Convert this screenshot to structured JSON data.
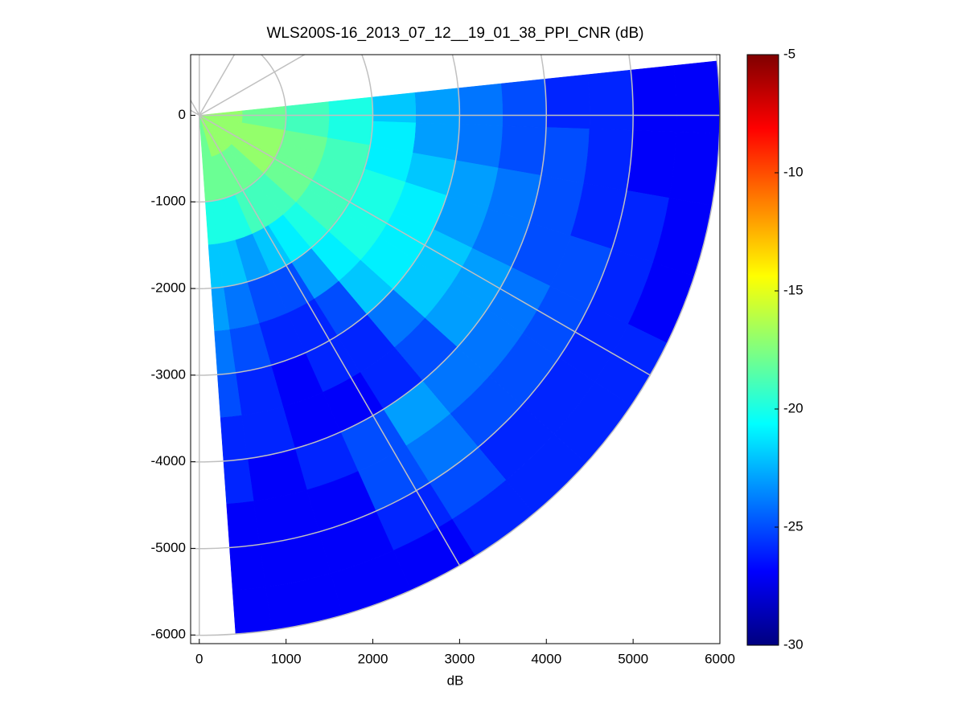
{
  "chart_data": {
    "type": "polar_heatmap",
    "title": "WLS200S-16_2013_07_12__19_01_38_PPI_CNR (dB)",
    "x_label": "dB",
    "xlim": [
      -100,
      6000
    ],
    "ylim": [
      -6100,
      700
    ],
    "xticks": [
      0,
      1000,
      2000,
      3000,
      4000,
      5000,
      6000
    ],
    "yticks": [
      -6000,
      -5000,
      -4000,
      -3000,
      -2000,
      -1000,
      0
    ],
    "azimuth_edges": [
      6,
      -2,
      -10,
      -18,
      -26,
      -34,
      -42,
      -50,
      -58,
      -66,
      -74,
      -82,
      -86
    ],
    "range_edges": [
      0,
      500,
      1000,
      1500,
      2000,
      2500,
      3000,
      3500,
      4000,
      4500,
      5000,
      5500,
      6000
    ],
    "values": [
      [
        -17,
        -18,
        -19,
        -20,
        -22,
        -23,
        -24,
        -25,
        -26,
        -26,
        -27,
        -27
      ],
      [
        -17,
        -18,
        -19,
        -20,
        -21,
        -23,
        -24,
        -25,
        -25,
        -26,
        -27,
        -27
      ],
      [
        -17,
        -17,
        -18,
        -19,
        -21,
        -22,
        -23,
        -24,
        -25,
        -26,
        -26,
        -27
      ],
      [
        -17,
        -17,
        -18,
        -19,
        -20,
        -21,
        -23,
        -24,
        -25,
        -25,
        -26,
        -27
      ],
      [
        -17,
        -17,
        -18,
        -19,
        -20,
        -21,
        -22,
        -23,
        -24,
        -25,
        -26,
        -26
      ],
      [
        -17,
        -17,
        -18,
        -19,
        -20,
        -21,
        -22,
        -23,
        -24,
        -25,
        -26,
        -26
      ],
      [
        -17,
        -18,
        -19,
        -20,
        -21,
        -22,
        -24,
        -25,
        -24,
        -25,
        -26,
        -26
      ],
      [
        -17,
        -18,
        -19,
        -21,
        -23,
        -25,
        -26,
        -26,
        -23,
        -24,
        -25,
        -26
      ],
      [
        -17,
        -18,
        -19,
        -22,
        -25,
        -26,
        -26,
        -27,
        -25,
        -25,
        -26,
        -27
      ],
      [
        -17,
        -18,
        -20,
        -23,
        -25,
        -26,
        -27,
        -27,
        -26,
        -27,
        -27,
        -27
      ],
      [
        -18,
        -18,
        -20,
        -22,
        -24,
        -25,
        -26,
        -26,
        -27,
        -27,
        -27,
        -27
      ],
      [
        -18,
        -18,
        -20,
        -22,
        -23,
        -24,
        -25,
        -26,
        -26,
        -27,
        -27,
        -27
      ]
    ],
    "colormap": "jet",
    "clim": [
      -30,
      -5
    ],
    "colorbar_ticks": [
      -30,
      -25,
      -20,
      -15,
      -10,
      -5
    ],
    "polar_grid": {
      "rings": [
        1000,
        2000,
        3000,
        4000,
        5000,
        6000
      ],
      "spokes": [
        90,
        60,
        30,
        0,
        -30,
        -60,
        -90,
        120,
        150
      ],
      "color": "#c0c0c0"
    }
  }
}
